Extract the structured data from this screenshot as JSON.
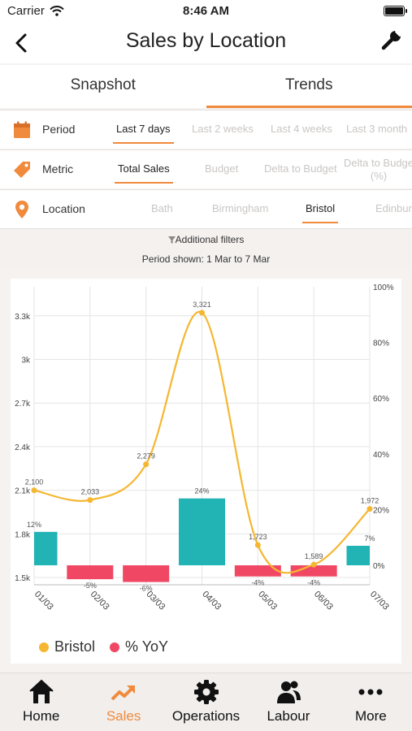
{
  "status": {
    "carrier": "Carrier",
    "time": "8:46 AM"
  },
  "nav": {
    "title": "Sales by Location",
    "back_icon": "chevron-left-icon",
    "settings_icon": "wrench-icon"
  },
  "tabs": [
    {
      "label": "Snapshot",
      "active": false
    },
    {
      "label": "Trends",
      "active": true
    }
  ],
  "filters": {
    "period": {
      "label": "Period",
      "icon": "calendar-icon",
      "options": [
        "Last 7 days",
        "Last 2 weeks",
        "Last 4 weeks",
        "Last 3 month"
      ],
      "selected": "Last 7 days"
    },
    "metric": {
      "label": "Metric",
      "icon": "tag-icon",
      "options": [
        "Total Sales",
        "Budget",
        "Delta to Budget",
        "Delta to Budge",
        "(%)"
      ],
      "selected": "Total Sales"
    },
    "location": {
      "label": "Location",
      "icon": "location-pin-icon",
      "options": [
        "Bath",
        "Birmingham",
        "Bristol",
        "Edinbur"
      ],
      "selected": "Bristol"
    }
  },
  "additional_filters": "Additional filters",
  "period_shown": "Period shown: 1 Mar to 7 Mar",
  "colors": {
    "accent": "#f08a3c",
    "line": "#f5b731",
    "bar_positive": "#22b3b5",
    "bar_negative": "#f04864"
  },
  "chart_data": {
    "type": "line",
    "categories": [
      "01/03",
      "02/03",
      "03/03",
      "04/03",
      "05/03",
      "06/03",
      "07/03"
    ],
    "series": [
      {
        "name": "Bristol",
        "type": "line",
        "axis": "left",
        "values": [
          2100,
          2033,
          2279,
          3321,
          1723,
          1589,
          1972
        ],
        "labels": [
          "2,100",
          "2,033",
          "2,279",
          "3,321",
          "1,723",
          "1,589",
          "1,972"
        ]
      },
      {
        "name": "% YoY",
        "type": "bar",
        "axis": "right",
        "values": [
          12,
          -5,
          -6,
          24,
          -4,
          -4,
          7
        ],
        "labels": [
          "12%",
          "-5%",
          "-6%",
          "24%",
          "-4%",
          "-4%",
          "7%"
        ]
      }
    ],
    "left_axis": {
      "ticks": [
        1500,
        1800,
        2100,
        2400,
        2700,
        3000,
        3300
      ],
      "tick_labels": [
        "1.5k",
        "1.8k",
        "2.1k",
        "2.4k",
        "2.7k",
        "3k",
        "3.3k"
      ],
      "range": [
        1450,
        3500
      ]
    },
    "right_axis": {
      "ticks": [
        0,
        20,
        40,
        60,
        80,
        100
      ],
      "tick_labels": [
        "0%",
        "20%",
        "40%",
        "60%",
        "80%",
        "100%"
      ],
      "range": [
        -7,
        100
      ]
    },
    "grid": true,
    "legend": "bottom-left"
  },
  "tabbar": [
    {
      "label": "Home",
      "icon": "home-icon",
      "active": false
    },
    {
      "label": "Sales",
      "icon": "trending-up-icon",
      "active": true
    },
    {
      "label": "Operations",
      "icon": "gear-icon",
      "active": false
    },
    {
      "label": "Labour",
      "icon": "people-icon",
      "active": false
    },
    {
      "label": "More",
      "icon": "more-icon",
      "active": false
    }
  ]
}
